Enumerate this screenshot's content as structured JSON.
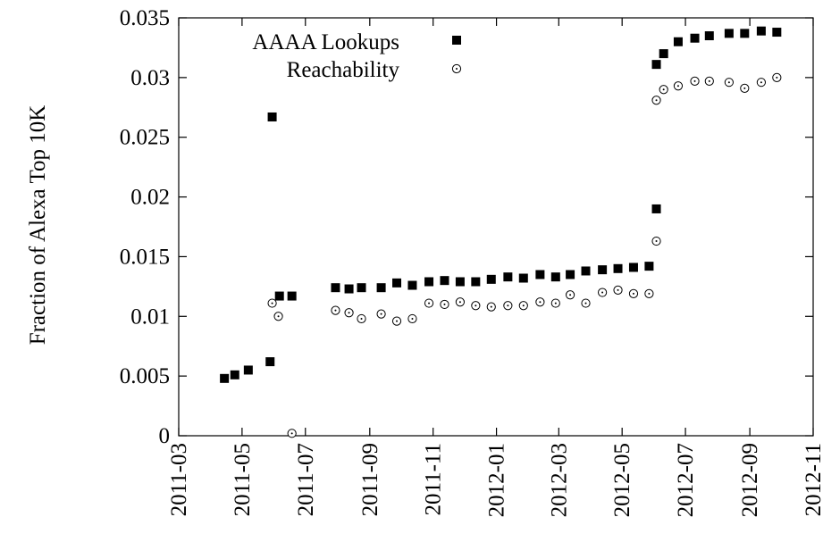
{
  "chart_data": {
    "type": "scatter",
    "title": "",
    "xlabel": "",
    "ylabel": "Fraction of Alexa Top 10K",
    "x_type": "date",
    "xlim": [
      "2011-03-01",
      "2012-11-01"
    ],
    "ylim": [
      0,
      0.035
    ],
    "x_ticks": [
      "2011-03-01",
      "2011-05-01",
      "2011-07-01",
      "2011-09-01",
      "2011-11-01",
      "2012-01-01",
      "2012-03-01",
      "2012-05-01",
      "2012-07-01",
      "2012-09-01",
      "2012-11-01"
    ],
    "x_tick_labels": [
      "2011-03",
      "2011-05",
      "2011-07",
      "2011-09",
      "2011-11",
      "2012-01",
      "2012-03",
      "2012-05",
      "2012-07",
      "2012-09",
      "2012-11"
    ],
    "y_ticks": [
      0,
      0.005,
      0.01,
      0.015,
      0.02,
      0.025,
      0.03,
      0.035
    ],
    "y_tick_labels": [
      "0",
      "0.005",
      "0.01",
      "0.015",
      "0.02",
      "0.025",
      "0.03",
      "0.035"
    ],
    "grid": false,
    "legend_position": "top-left",
    "series": [
      {
        "name": "AAAA Lookups",
        "marker": "filled-square",
        "color": "#000000",
        "points": [
          [
            "2011-04-14",
            0.0048
          ],
          [
            "2011-04-24",
            0.0051
          ],
          [
            "2011-05-07",
            0.0055
          ],
          [
            "2011-05-28",
            0.0062
          ],
          [
            "2011-05-30",
            0.0267
          ],
          [
            "2011-06-06",
            0.0117
          ],
          [
            "2011-06-18",
            0.0117
          ],
          [
            "2011-07-30",
            0.0124
          ],
          [
            "2011-08-12",
            0.0123
          ],
          [
            "2011-08-24",
            0.0124
          ],
          [
            "2011-09-12",
            0.0124
          ],
          [
            "2011-09-27",
            0.0128
          ],
          [
            "2011-10-12",
            0.0126
          ],
          [
            "2011-10-28",
            0.0129
          ],
          [
            "2011-11-12",
            0.013
          ],
          [
            "2011-11-27",
            0.0129
          ],
          [
            "2011-12-12",
            0.0129
          ],
          [
            "2011-12-27",
            0.0131
          ],
          [
            "2012-01-12",
            0.0133
          ],
          [
            "2012-01-27",
            0.0132
          ],
          [
            "2012-02-12",
            0.0135
          ],
          [
            "2012-02-27",
            0.0133
          ],
          [
            "2012-03-12",
            0.0135
          ],
          [
            "2012-03-27",
            0.0138
          ],
          [
            "2012-04-12",
            0.0139
          ],
          [
            "2012-04-27",
            0.014
          ],
          [
            "2012-05-12",
            0.0141
          ],
          [
            "2012-05-27",
            0.0142
          ],
          [
            "2012-06-03",
            0.019
          ],
          [
            "2012-06-03",
            0.0311
          ],
          [
            "2012-06-10",
            0.032
          ],
          [
            "2012-06-24",
            0.033
          ],
          [
            "2012-07-10",
            0.0333
          ],
          [
            "2012-07-24",
            0.0335
          ],
          [
            "2012-08-12",
            0.0337
          ],
          [
            "2012-08-27",
            0.0337
          ],
          [
            "2012-09-12",
            0.0339
          ],
          [
            "2012-09-27",
            0.0338
          ]
        ]
      },
      {
        "name": "Reachability",
        "marker": "open-circle",
        "color": "#000000",
        "points": [
          [
            "2011-05-30",
            0.0111
          ],
          [
            "2011-06-05",
            0.01
          ],
          [
            "2011-06-18",
            0.0002
          ],
          [
            "2011-07-30",
            0.0105
          ],
          [
            "2011-08-12",
            0.0103
          ],
          [
            "2011-08-24",
            0.0098
          ],
          [
            "2011-09-12",
            0.0102
          ],
          [
            "2011-09-27",
            0.0096
          ],
          [
            "2011-10-12",
            0.0098
          ],
          [
            "2011-10-28",
            0.0111
          ],
          [
            "2011-11-12",
            0.011
          ],
          [
            "2011-11-27",
            0.0112
          ],
          [
            "2011-12-12",
            0.0109
          ],
          [
            "2011-12-27",
            0.0108
          ],
          [
            "2012-01-12",
            0.0109
          ],
          [
            "2012-01-27",
            0.0109
          ],
          [
            "2012-02-12",
            0.0112
          ],
          [
            "2012-02-27",
            0.0111
          ],
          [
            "2012-03-12",
            0.0118
          ],
          [
            "2012-03-27",
            0.0111
          ],
          [
            "2012-04-12",
            0.012
          ],
          [
            "2012-04-27",
            0.0122
          ],
          [
            "2012-05-12",
            0.0119
          ],
          [
            "2012-05-27",
            0.0119
          ],
          [
            "2012-06-03",
            0.0163
          ],
          [
            "2012-06-03",
            0.0281
          ],
          [
            "2012-06-10",
            0.029
          ],
          [
            "2012-06-24",
            0.0293
          ],
          [
            "2012-07-10",
            0.0297
          ],
          [
            "2012-07-24",
            0.0297
          ],
          [
            "2012-08-12",
            0.0296
          ],
          [
            "2012-08-27",
            0.0291
          ],
          [
            "2012-09-12",
            0.0296
          ],
          [
            "2012-09-27",
            0.03
          ]
        ]
      }
    ]
  }
}
